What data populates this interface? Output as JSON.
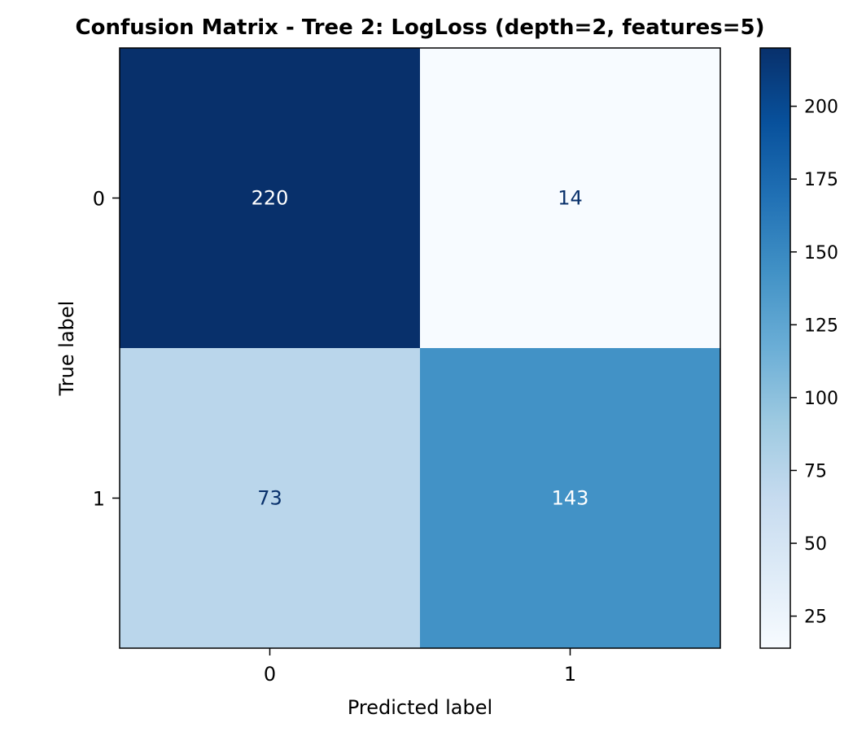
{
  "chart_data": {
    "type": "heatmap",
    "title": "Confusion Matrix - Tree 2: LogLoss (depth=2, features=5)",
    "xlabel": "Predicted label",
    "ylabel": "True label",
    "x_categories": [
      "0",
      "1"
    ],
    "y_categories": [
      "0",
      "1"
    ],
    "values": [
      [
        220,
        14
      ],
      [
        73,
        143
      ]
    ],
    "colormap": "Blues",
    "vmin": 14,
    "vmax": 220,
    "colorbar_ticks": [
      25,
      50,
      75,
      100,
      125,
      150,
      175,
      200
    ],
    "text_color_dark_bg": "#ffffff",
    "text_color_light_bg": "#08306b"
  }
}
